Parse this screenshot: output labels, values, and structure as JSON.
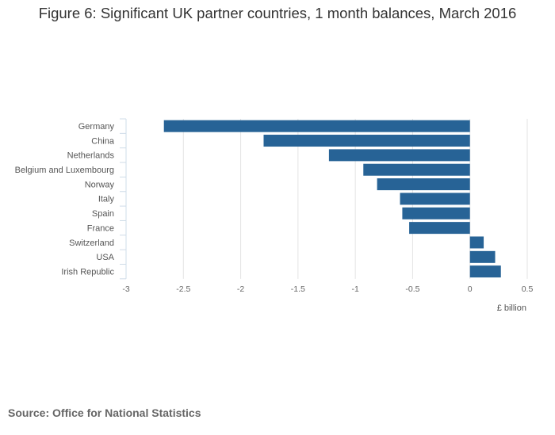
{
  "chart_data": {
    "type": "bar",
    "orientation": "horizontal",
    "title": "Figure 6: Significant UK partner countries, 1 month balances, March 2016",
    "xlabel": "£ billion",
    "ylabel": "",
    "categories": [
      "Germany",
      "China",
      "Netherlands",
      "Belgium and Luxembourg",
      "Norway",
      "Italy",
      "Spain",
      "France",
      "Switzerland",
      "USA",
      "Irish Republic"
    ],
    "values": [
      -2.67,
      -1.8,
      -1.23,
      -0.93,
      -0.81,
      -0.61,
      -0.59,
      -0.53,
      0.12,
      0.22,
      0.27
    ],
    "xlim": [
      -3,
      0.5
    ],
    "xticks": [
      -3,
      -2.5,
      -2,
      -1.5,
      -1,
      -0.5,
      0,
      0.5
    ],
    "xtick_labels": [
      "-3",
      "-2.5",
      "-2",
      "-1.5",
      "-1",
      "-0.5",
      "0",
      "0.5"
    ],
    "grid": true,
    "bar_color": "#276396"
  },
  "source": "Source: Office for National Statistics"
}
